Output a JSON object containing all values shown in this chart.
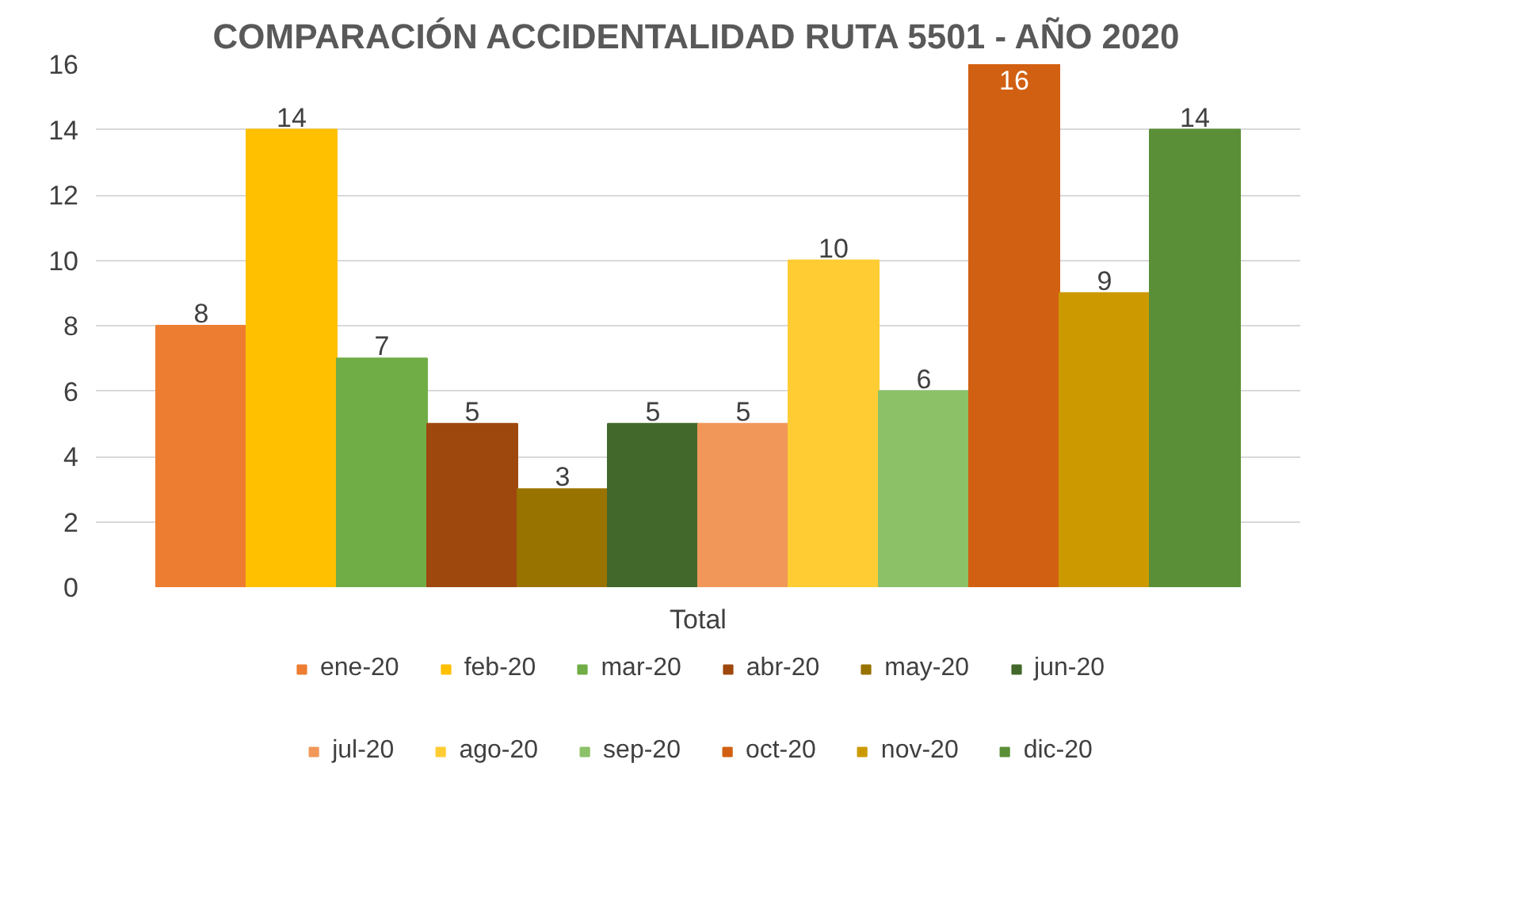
{
  "chart_data": {
    "type": "bar",
    "title": "COMPARACIÓN ACCIDENTALIDAD RUTA 5501 - AÑO 2020",
    "categories": [
      "Total"
    ],
    "series": [
      {
        "name": "ene-20",
        "color": "#ed7d31",
        "values": [
          8
        ]
      },
      {
        "name": "feb-20",
        "color": "#ffc000",
        "values": [
          14
        ]
      },
      {
        "name": "mar-20",
        "color": "#70ad47",
        "values": [
          7
        ]
      },
      {
        "name": "abr-20",
        "color": "#9e480e",
        "values": [
          5
        ]
      },
      {
        "name": "may-20",
        "color": "#997300",
        "values": [
          3
        ]
      },
      {
        "name": "jun-20",
        "color": "#43682b",
        "values": [
          5
        ]
      },
      {
        "name": "jul-20",
        "color": "#f1975a",
        "values": [
          5
        ]
      },
      {
        "name": "ago-20",
        "color": "#ffcd33",
        "values": [
          10
        ]
      },
      {
        "name": "sep-20",
        "color": "#8cc168",
        "values": [
          6
        ]
      },
      {
        "name": "oct-20",
        "color": "#d26012",
        "values": [
          16
        ]
      },
      {
        "name": "nov-20",
        "color": "#cc9a00",
        "values": [
          9
        ]
      },
      {
        "name": "dic-20",
        "color": "#5a8f37",
        "values": [
          14
        ]
      }
    ],
    "ylim": [
      0,
      16
    ],
    "yticks": [
      0,
      2,
      4,
      6,
      8,
      10,
      12,
      14,
      16
    ],
    "grid": "y",
    "legend": "bottom",
    "data_labels": true
  }
}
